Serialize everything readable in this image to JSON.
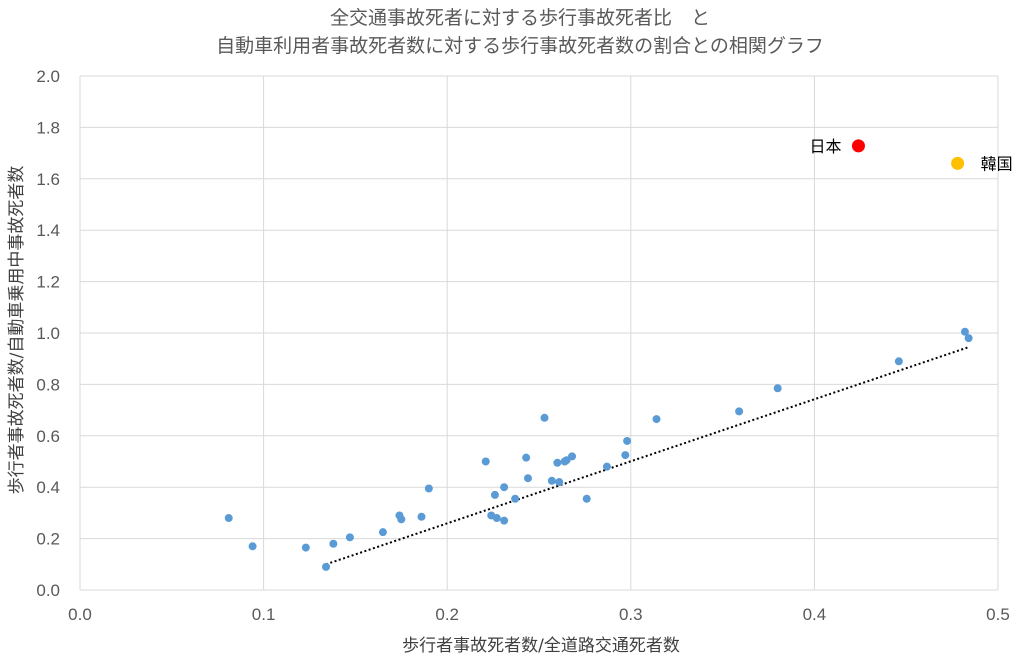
{
  "chart_data": {
    "type": "scatter",
    "title_lines": [
      "全交通事故死者に対する歩行事故死者比　と",
      "自動車利用者事故死者数に対する歩行事故死者数の割合との相関グラフ"
    ],
    "xlabel": "歩行者事故死者数/全道路交通死者数",
    "ylabel": "歩行者事故死者数/自動車乗用中事故死者数",
    "xlim": [
      0,
      0.5
    ],
    "ylim": [
      0,
      2.0
    ],
    "x_ticks": [
      "0.0",
      "0.1",
      "0.2",
      "0.3",
      "0.4",
      "0.5"
    ],
    "y_ticks": [
      "0.0",
      "0.2",
      "0.4",
      "0.6",
      "0.8",
      "1.0",
      "1.2",
      "1.4",
      "1.6",
      "1.8",
      "2.0"
    ],
    "grid": true,
    "series": [
      {
        "color": "#5b9bd5",
        "points": [
          [
            0.134,
            0.09
          ],
          [
            0.081,
            0.28
          ],
          [
            0.094,
            0.17
          ],
          [
            0.123,
            0.165
          ],
          [
            0.138,
            0.18
          ],
          [
            0.147,
            0.205
          ],
          [
            0.165,
            0.225
          ],
          [
            0.174,
            0.29
          ],
          [
            0.175,
            0.275
          ],
          [
            0.186,
            0.285
          ],
          [
            0.19,
            0.395
          ],
          [
            0.221,
            0.5
          ],
          [
            0.224,
            0.29
          ],
          [
            0.226,
            0.37
          ],
          [
            0.227,
            0.28
          ],
          [
            0.231,
            0.27
          ],
          [
            0.237,
            0.355
          ],
          [
            0.244,
            0.435
          ],
          [
            0.257,
            0.425
          ],
          [
            0.261,
            0.42
          ],
          [
            0.264,
            0.5
          ],
          [
            0.276,
            0.355
          ],
          [
            0.231,
            0.4
          ],
          [
            0.243,
            0.515
          ],
          [
            0.253,
            0.67
          ],
          [
            0.26,
            0.495
          ],
          [
            0.265,
            0.505
          ],
          [
            0.268,
            0.52
          ],
          [
            0.287,
            0.48
          ],
          [
            0.297,
            0.525
          ],
          [
            0.298,
            0.58
          ],
          [
            0.314,
            0.665
          ],
          [
            0.359,
            0.695
          ],
          [
            0.38,
            0.785
          ],
          [
            0.446,
            0.89
          ],
          [
            0.482,
            1.005
          ],
          [
            0.484,
            0.98
          ]
        ]
      }
    ],
    "highlights": [
      {
        "label": "日本",
        "x": 0.424,
        "y": 1.728,
        "color": "#ff0000",
        "label_side": "left"
      },
      {
        "label": "韓国",
        "x": 0.478,
        "y": 1.66,
        "color": "#ffc000",
        "label_side": "right"
      }
    ],
    "trendline": {
      "type": "linear",
      "style": "dotted",
      "color": "#000000",
      "x_start": 0.134,
      "y_start": 0.1,
      "x_end": 0.484,
      "y_end": 0.945
    }
  }
}
